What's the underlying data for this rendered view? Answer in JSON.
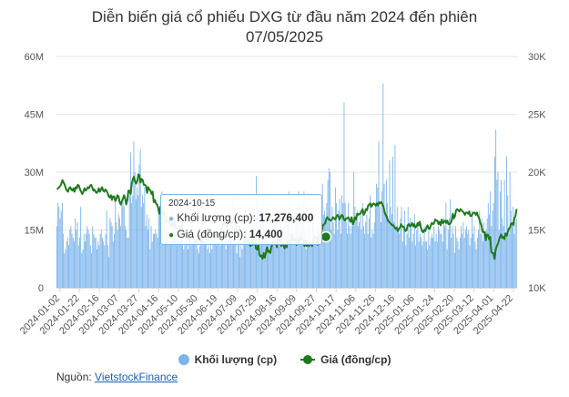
{
  "title_line1": "Diễn biến giá cổ phiếu DXG từ đầu năm 2024 đến phiên",
  "title_line2": "07/05/2025",
  "source_label": "Nguồn:",
  "source_link": "VietstockFinance",
  "colors": {
    "volume": "#7cb5ec",
    "price": "#1e7a1e",
    "grid": "#e6e6e6",
    "text": "#555555"
  },
  "legend": {
    "volume": "Khối lượng (cp)",
    "price": "Giá (đồng/cp)"
  },
  "tooltip": {
    "date": "2024-10-15",
    "volume_label": "Khối lượng (cp):",
    "volume_value": "17,276,400",
    "price_label": "Giá (đồng/cp):",
    "price_value": "14,400"
  },
  "chart_data": {
    "type": "bar+line",
    "title": "Diễn biến giá cổ phiếu DXG từ đầu năm 2024 đến phiên 07/05/2025",
    "x_ticks": [
      "2024-01-02",
      "2024-01-22",
      "2024-02-16",
      "2024-03-07",
      "2024-03-27",
      "2024-04-16",
      "2024-05-10",
      "2024-05-30",
      "2024-06-19",
      "2024-07-09",
      "2024-07-29",
      "2024-08-16",
      "2024-09-09",
      "2024-09-27",
      "2024-10-17",
      "2024-11-06",
      "2024-11-26",
      "2024-12-16",
      "2025-01-06",
      "2025-01-24",
      "2025-02-20",
      "2025-03-12",
      "2025-04-01",
      "2025-04-22"
    ],
    "left_axis": {
      "ticks": [
        "0",
        "15M",
        "30M",
        "45M",
        "60M"
      ],
      "ylim": [
        0,
        60000000
      ]
    },
    "right_axis": {
      "ticks": [
        "10K",
        "15K",
        "20K",
        "25K",
        "30K"
      ],
      "ylim": [
        10000,
        30000
      ]
    },
    "series": [
      {
        "name": "Khối lượng (cp)",
        "type": "bar",
        "values": [
          16,
          22,
          21,
          18,
          20,
          22,
          14,
          9,
          10,
          12,
          13,
          11,
          15,
          16,
          14,
          13,
          12,
          18,
          15,
          17,
          11,
          13,
          21,
          9,
          10,
          14,
          12,
          14,
          16,
          15,
          14,
          11,
          9,
          16,
          14,
          13,
          13,
          10,
          12,
          11,
          14,
          15,
          13,
          12,
          11,
          14,
          20,
          11,
          8,
          18,
          17,
          16,
          12,
          14,
          23,
          17,
          15,
          19,
          18,
          16,
          22,
          23,
          21,
          16,
          15,
          13,
          13,
          24,
          35,
          22,
          24,
          38,
          30,
          23,
          26,
          24,
          32,
          36,
          21,
          24,
          22,
          26,
          16,
          19,
          15,
          18,
          10,
          16,
          12,
          14,
          14,
          15,
          14,
          13,
          19,
          20,
          18,
          25,
          16,
          18,
          17,
          15,
          19,
          14,
          12,
          15,
          13,
          16,
          22,
          14,
          11,
          12,
          13,
          12,
          12,
          13,
          15,
          10,
          11,
          14,
          14,
          10,
          13,
          12,
          11,
          18,
          12,
          13,
          14,
          13,
          10,
          9,
          11,
          12,
          15,
          13,
          14,
          12,
          13,
          10,
          11,
          9,
          12,
          10,
          14,
          12,
          13,
          11,
          16,
          12,
          13,
          11,
          12,
          15,
          13,
          16,
          10,
          13,
          14,
          17,
          21,
          13,
          24,
          14,
          18,
          16,
          9,
          15,
          16,
          8,
          11,
          10,
          16,
          15,
          14,
          13,
          12,
          13,
          12,
          19,
          18,
          20,
          11,
          19,
          29,
          22,
          20,
          20,
          23,
          16,
          17,
          24,
          14,
          14,
          15,
          13,
          13,
          12,
          15,
          16,
          12,
          19,
          22,
          21,
          19,
          15,
          17,
          21,
          15,
          21,
          16,
          21,
          20,
          18,
          25,
          14,
          17,
          19,
          15,
          13,
          20,
          18,
          17,
          25,
          22,
          16,
          17,
          22,
          25,
          15,
          10,
          19,
          12,
          17,
          16,
          12,
          18,
          21,
          14,
          13,
          16,
          15,
          17,
          14,
          13,
          27,
          19,
          20,
          18,
          22,
          28,
          31,
          30,
          15,
          21,
          17,
          14,
          26,
          22,
          15,
          20,
          23,
          14,
          24,
          22,
          48,
          22,
          17,
          14,
          22,
          16,
          14,
          16,
          18,
          30,
          21,
          18,
          20,
          16,
          17,
          20,
          15,
          22,
          16,
          14,
          17,
          19,
          14,
          18,
          24,
          13,
          15,
          14,
          17,
          22,
          27,
          26,
          38,
          21,
          17,
          25,
          53,
          27,
          20,
          28,
          22,
          18,
          33,
          21,
          19,
          34,
          17,
          37,
          16,
          21,
          15,
          14,
          18,
          21,
          12,
          16,
          20,
          11,
          14,
          21,
          13,
          18,
          16,
          12,
          14,
          19,
          11,
          15,
          17,
          12,
          14,
          13,
          11,
          12,
          16,
          12,
          12,
          10,
          15,
          11,
          13,
          14,
          13,
          16,
          12,
          14,
          12,
          16,
          15,
          14,
          14,
          12,
          18,
          16,
          22,
          10,
          15,
          18,
          23,
          13,
          16,
          14,
          9,
          16,
          13,
          12,
          10,
          13,
          16,
          14,
          17,
          13,
          15,
          16,
          14,
          15,
          11,
          13,
          20,
          14,
          16,
          12,
          10,
          13,
          15,
          20,
          14,
          18,
          12,
          17,
          14,
          15,
          18,
          22,
          19,
          25,
          16,
          20,
          22,
          34,
          41,
          28,
          30,
          15,
          25,
          28,
          18,
          16,
          28,
          13,
          34,
          24,
          14,
          30,
          20,
          16,
          21,
          14,
          17,
          18
        ],
        "unit": "million cp"
      },
      {
        "name": "Giá (đồng/cp)",
        "type": "line",
        "values": [
          18.5,
          18.6,
          18.7,
          18.8,
          19,
          19.3,
          19.1,
          18.9,
          18.6,
          18.4,
          18.3,
          18.6,
          18.7,
          18.5,
          18.4,
          18.6,
          18.3,
          18.7,
          18.6,
          18.9,
          18.8,
          18.5,
          18.3,
          18.1,
          18.3,
          18.6,
          18.4,
          18.5,
          18.7,
          18.6,
          18.8,
          18.9,
          18.7,
          18.4,
          18.5,
          18.3,
          18.2,
          18.3,
          18.6,
          18.3,
          18.5,
          18.7,
          18.4,
          18.3,
          18.5,
          18.4,
          18.2,
          17.9,
          17.8,
          18,
          17.6,
          17.9,
          17.9,
          17.5,
          17.7,
          18,
          17.9,
          17.4,
          17.2,
          17.5,
          17.7,
          18,
          17.7,
          17.2,
          17.6,
          18.4,
          18.4,
          18.1,
          19,
          19.4,
          19.6,
          19.2,
          19,
          19.2,
          19.8,
          19.7,
          19.1,
          19.4,
          19.3,
          18.9,
          18.9,
          18.8,
          18.2,
          18.7,
          18.5,
          18.4,
          18.1,
          18.3,
          17.4,
          17.6,
          17.3,
          17.2,
          16.9,
          16.4,
          17,
          16.8,
          16.8,
          16.3,
          16.5,
          15.8,
          15.7,
          15.8,
          15.8,
          15.4,
          15.3,
          15.5,
          15.4,
          15.6,
          15.3,
          14.9,
          14.8,
          15.3,
          15.1,
          15.3,
          15.6,
          14.9,
          14.5,
          14.7,
          14.6,
          14.4,
          14.1,
          14.1,
          14.5,
          14.5,
          14.5,
          14.1,
          14,
          13.9,
          14.5,
          14.1,
          14.3,
          13.8,
          14.1,
          14.7,
          14.6,
          14.7,
          14.5,
          14.3,
          14.1,
          14.2,
          14.5,
          14.3,
          14.2,
          14.2,
          14.2,
          14.6,
          14.8,
          14.3,
          14.7,
          14.9,
          15.2,
          15.5,
          15.7,
          15.5,
          15.3,
          15.2,
          15.5,
          15.9,
          15.6,
          15.7,
          15.6,
          15.9,
          15.5,
          15.3,
          14.7,
          14.7,
          15.3,
          14.7,
          14.5,
          14.6,
          14.3,
          13.9,
          14,
          14.2,
          14,
          13.8,
          13.6,
          14.1,
          13.7,
          14,
          13.9,
          13.4,
          13.3,
          13.8,
          12.9,
          12.7,
          12.8,
          12.5,
          13,
          12.6,
          13,
          13.5,
          13.1,
          13.2,
          13,
          13.5,
          13.8,
          14,
          13.8,
          13.8,
          13.5,
          14.3,
          14.4,
          14,
          13.6,
          13.9,
          13.7,
          13.4,
          13.8,
          13.5,
          14.1,
          13.8,
          13.8,
          14.3,
          14.6,
          14.1,
          14.1,
          14.2,
          13.7,
          14.2,
          13.8,
          14.3,
          14.4,
          14.1,
          14.2,
          13.6,
          14.1,
          13.6,
          14,
          13.6,
          13.8,
          13.8,
          13.6,
          14.1,
          14.4,
          14.4,
          14.4,
          13.7,
          14.4,
          14.3,
          14.6,
          15,
          15.4,
          15.5,
          15.6,
          16,
          16.1,
          15.9,
          15.9,
          15.8,
          15.9,
          16.1,
          16,
          15.9,
          16.1,
          16.3,
          16.2,
          15.9,
          16.1,
          16.3,
          16.2,
          15.9,
          15.8,
          16,
          16,
          16.1,
          15.9,
          15.7,
          16.1,
          15.5,
          15.7,
          16.1,
          15.9,
          16.4,
          16.3,
          16.4,
          16.4,
          16.6,
          16.8,
          16.3,
          16.5,
          16.8,
          16.7,
          17.1,
          17.2,
          17.3,
          17,
          17.2,
          17.3,
          17.2,
          17.1,
          17.3,
          17.1,
          17.4,
          17.3,
          17.4,
          17.2,
          17,
          16.5,
          16.3,
          16.1,
          15.8,
          15.7,
          15.6,
          15.5,
          15.4,
          15.4,
          15.2,
          15.1,
          15.2,
          14.9,
          15.1,
          15.2,
          15.5,
          15.3,
          15.3,
          15.1,
          14.9,
          15,
          15.4,
          15.5,
          15.3,
          15.4,
          15.6,
          15.3,
          15.5,
          15.2,
          15.3,
          15.6,
          15.4,
          15.7,
          15.2,
          14.9,
          14.8,
          15,
          14.9,
          15.2,
          15.4,
          15.1,
          15.1,
          15.4,
          15.6,
          15.5,
          15.6,
          15.9,
          15.8,
          15.8,
          15.5,
          15.7,
          15.4,
          15.9,
          15.6,
          15.7,
          15.8,
          15.6,
          15.8,
          15.5,
          15.5,
          15.6,
          15.8,
          16.4,
          16,
          16.2,
          16.7,
          16.8,
          16.7,
          16.6,
          16.8,
          16.7,
          16.6,
          16.5,
          16.3,
          16.5,
          16.5,
          16.4,
          16.6,
          16.2,
          16.2,
          16.4,
          16.5,
          16.5,
          16.3,
          16.5,
          16.2,
          16,
          15.6,
          15.4,
          14.9,
          14.8,
          14.8,
          14.1,
          14.6,
          14.6,
          14.2,
          14.4,
          13.1,
          13,
          13,
          12.5,
          13.3,
          13.6,
          13.8,
          14.1,
          14.4,
          14.6,
          14.3,
          14.4,
          14.2,
          14.7,
          14.5,
          14.8,
          15.1,
          15.2,
          15.5,
          15.6,
          15.4,
          16,
          16.2,
          16.8
        ],
        "unit": "thousand đồng/cp"
      }
    ]
  }
}
